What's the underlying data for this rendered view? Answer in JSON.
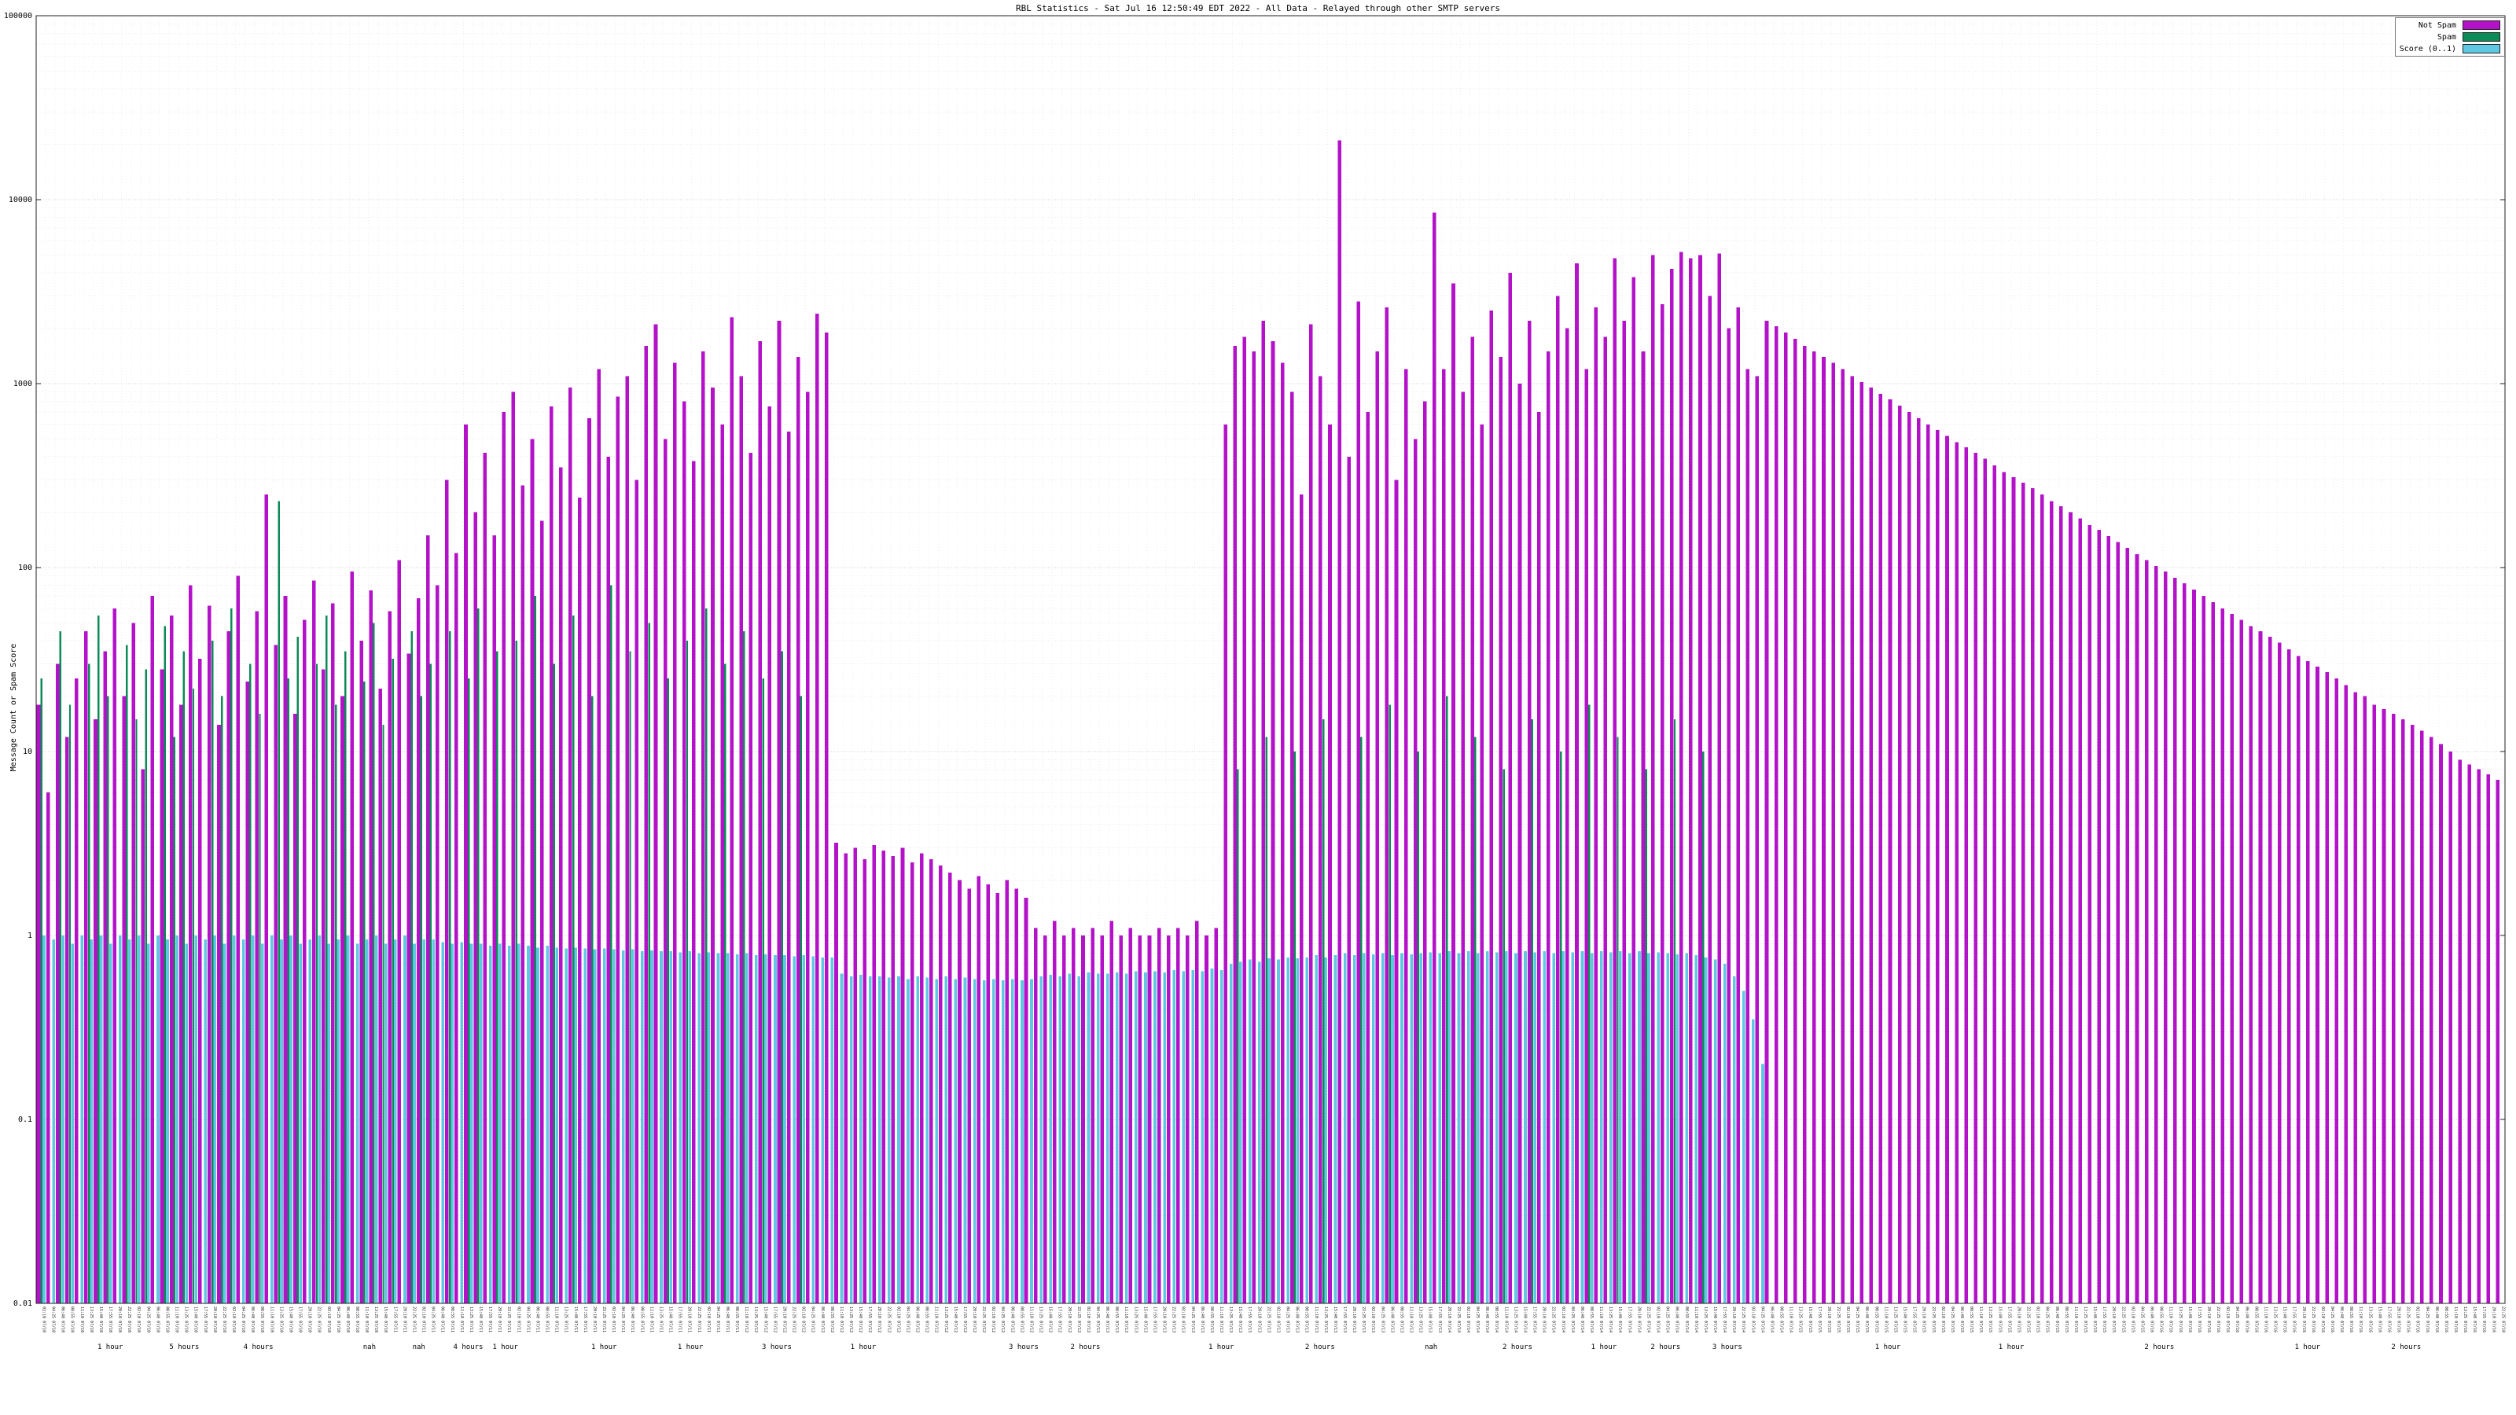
{
  "title": "RBL Statistics - Sat Jul 16 12:50:49 EDT 2022 - All Data - Relayed through other SMTP servers",
  "y_axis": {
    "label": "Message Count or Spam Score",
    "scale": "log",
    "ticks": [
      "100000",
      "10000",
      "1000",
      "100",
      "10",
      "1",
      "0.1",
      "0.01"
    ],
    "tick_values": [
      100000,
      10000,
      1000,
      100,
      10,
      1,
      0.1,
      0.01
    ]
  },
  "x_axis": {
    "tick_time_pattern": [
      "02:10",
      "04:25",
      "06:40",
      "08:55",
      "11:10",
      "13:25",
      "15:40",
      "17:55",
      "20:10",
      "22:25"
    ],
    "tick_date_pattern": [
      "07/10",
      "07/11",
      "07/12",
      "07/13",
      "07/14",
      "07/15",
      "07/16"
    ],
    "group_labels": [
      {
        "x": 0.03,
        "t": "1 hour"
      },
      {
        "x": 0.06,
        "t": "5 hours"
      },
      {
        "x": 0.09,
        "t": "4 hours"
      },
      {
        "x": 0.135,
        "t": "nah"
      },
      {
        "x": 0.155,
        "t": "nah"
      },
      {
        "x": 0.175,
        "t": "4 hours"
      },
      {
        "x": 0.19,
        "t": "1 hour"
      },
      {
        "x": 0.23,
        "t": "1 hour"
      },
      {
        "x": 0.265,
        "t": "1 hour"
      },
      {
        "x": 0.3,
        "t": "3 hours"
      },
      {
        "x": 0.335,
        "t": "1 hour"
      },
      {
        "x": 0.4,
        "t": "3 hours"
      },
      {
        "x": 0.425,
        "t": "2 hours"
      },
      {
        "x": 0.48,
        "t": "1 hour"
      },
      {
        "x": 0.52,
        "t": "2 hours"
      },
      {
        "x": 0.565,
        "t": "nah"
      },
      {
        "x": 0.6,
        "t": "2 hours"
      },
      {
        "x": 0.635,
        "t": "1 hour"
      },
      {
        "x": 0.66,
        "t": "2 hours"
      },
      {
        "x": 0.685,
        "t": "3 hours"
      },
      {
        "x": 0.75,
        "t": "1 hour"
      },
      {
        "x": 0.8,
        "t": "1 hour"
      },
      {
        "x": 0.86,
        "t": "2 hours"
      },
      {
        "x": 0.92,
        "t": "1 hour"
      },
      {
        "x": 0.96,
        "t": "2 hours"
      }
    ]
  },
  "legend": {
    "items": [
      {
        "label": "Not Spam",
        "color": "#b312c9"
      },
      {
        "label": "Spam",
        "color": "#0c8a57"
      },
      {
        "label": "Score (0..1)",
        "color": "#5ec8e2"
      }
    ]
  },
  "chart_data": {
    "type": "bar",
    "title": "RBL Statistics - Sat Jul 16 12:50:49 EDT 2022 - All Data - Relayed through other SMTP servers",
    "xlabel": "",
    "ylabel": "Message Count or Spam Score",
    "ylim": [
      0.01,
      100000
    ],
    "log_scale": true,
    "grid": true,
    "legend_position": "top-right",
    "series_names": [
      "Not Spam",
      "Spam",
      "Score (0..1)"
    ],
    "bars_format": "[not_spam_count, spam_count, score_0_to_1]",
    "bars": [
      [
        18,
        25,
        1
      ],
      [
        6,
        0,
        0.95
      ],
      [
        30,
        45,
        1
      ],
      [
        12,
        18,
        0.9
      ],
      [
        25,
        0,
        1
      ],
      [
        45,
        30,
        0.95
      ],
      [
        15,
        55,
        1
      ],
      [
        35,
        20,
        0.9
      ],
      [
        60,
        0,
        1
      ],
      [
        20,
        38,
        0.95
      ],
      [
        50,
        15,
        1
      ],
      [
        8,
        28,
        0.9
      ],
      [
        70,
        0,
        1
      ],
      [
        28,
        48,
        0.95
      ],
      [
        55,
        12,
        1
      ],
      [
        18,
        35,
        0.9
      ],
      [
        80,
        22,
        1
      ],
      [
        32,
        0,
        0.95
      ],
      [
        62,
        40,
        1
      ],
      [
        14,
        20,
        0.9
      ],
      [
        45,
        60,
        1
      ],
      [
        90,
        0,
        0.95
      ],
      [
        24,
        30,
        1
      ],
      [
        58,
        16,
        0.9
      ],
      [
        250,
        0,
        1
      ],
      [
        38,
        230,
        0.95
      ],
      [
        70,
        25,
        1
      ],
      [
        16,
        42,
        0.9
      ],
      [
        52,
        0,
        0.95
      ],
      [
        85,
        30,
        1
      ],
      [
        28,
        55,
        0.9
      ],
      [
        64,
        18,
        0.95
      ],
      [
        20,
        35,
        1
      ],
      [
        95,
        0,
        0.9
      ],
      [
        40,
        24,
        0.95
      ],
      [
        75,
        50,
        1
      ],
      [
        22,
        14,
        0.9
      ],
      [
        58,
        32,
        0.95
      ],
      [
        110,
        0,
        1
      ],
      [
        34,
        45,
        0.9
      ],
      [
        68,
        20,
        0.95
      ],
      [
        150,
        30,
        0.95
      ],
      [
        80,
        0,
        0.92
      ],
      [
        300,
        45,
        0.9
      ],
      [
        120,
        0,
        0.92
      ],
      [
        600,
        25,
        0.9
      ],
      [
        200,
        60,
        0.9
      ],
      [
        420,
        0,
        0.88
      ],
      [
        150,
        35,
        0.9
      ],
      [
        700,
        0,
        0.88
      ],
      [
        900,
        40,
        0.9
      ],
      [
        280,
        0,
        0.88
      ],
      [
        500,
        70,
        0.86
      ],
      [
        180,
        0,
        0.88
      ],
      [
        750,
        30,
        0.86
      ],
      [
        350,
        0,
        0.85
      ],
      [
        950,
        55,
        0.86
      ],
      [
        240,
        0,
        0.85
      ],
      [
        650,
        20,
        0.84
      ],
      [
        1200,
        0,
        0.85
      ],
      [
        400,
        80,
        0.84
      ],
      [
        850,
        0,
        0.83
      ],
      [
        1100,
        35,
        0.84
      ],
      [
        300,
        0,
        0.82
      ],
      [
        1600,
        50,
        0.83
      ],
      [
        2100,
        0,
        0.82
      ],
      [
        500,
        25,
        0.82
      ],
      [
        1300,
        0,
        0.81
      ],
      [
        800,
        40,
        0.82
      ],
      [
        380,
        0,
        0.8
      ],
      [
        1500,
        60,
        0.81
      ],
      [
        950,
        0,
        0.8
      ],
      [
        600,
        30,
        0.8
      ],
      [
        2300,
        0,
        0.79
      ],
      [
        1100,
        45,
        0.8
      ],
      [
        420,
        0,
        0.78
      ],
      [
        1700,
        25,
        0.79
      ],
      [
        750,
        0,
        0.78
      ],
      [
        2200,
        35,
        0.78
      ],
      [
        550,
        0,
        0.77
      ],
      [
        1400,
        20,
        0.78
      ],
      [
        900,
        0,
        0.77
      ],
      [
        2400,
        0,
        0.76
      ],
      [
        1900,
        0,
        0.76
      ],
      [
        3.2,
        0,
        0.62
      ],
      [
        2.8,
        0,
        0.6
      ],
      [
        3,
        0,
        0.61
      ],
      [
        2.6,
        0,
        0.6
      ],
      [
        3.1,
        0,
        0.6
      ],
      [
        2.9,
        0,
        0.59
      ],
      [
        2.7,
        0,
        0.6
      ],
      [
        3,
        0,
        0.58
      ],
      [
        2.5,
        0,
        0.6
      ],
      [
        2.8,
        0,
        0.59
      ],
      [
        2.6,
        0,
        0.58
      ],
      [
        2.4,
        0,
        0.6
      ],
      [
        2.2,
        0,
        0.58
      ],
      [
        2,
        0,
        0.59
      ],
      [
        1.8,
        0,
        0.58
      ],
      [
        2.1,
        0,
        0.57
      ],
      [
        1.9,
        0,
        0.58
      ],
      [
        1.7,
        0,
        0.57
      ],
      [
        2,
        0,
        0.58
      ],
      [
        1.8,
        0,
        0.57
      ],
      [
        1.6,
        0,
        0.58
      ],
      [
        1.1,
        0,
        0.6
      ],
      [
        1,
        0,
        0.61
      ],
      [
        1.2,
        0,
        0.6
      ],
      [
        1,
        0,
        0.62
      ],
      [
        1.1,
        0,
        0.6
      ],
      [
        1,
        0,
        0.63
      ],
      [
        1.1,
        0,
        0.62
      ],
      [
        1,
        0,
        0.62
      ],
      [
        1.2,
        0,
        0.63
      ],
      [
        1,
        0,
        0.62
      ],
      [
        1.1,
        0,
        0.64
      ],
      [
        1,
        0,
        0.63
      ],
      [
        1,
        0,
        0.64
      ],
      [
        1.1,
        0,
        0.63
      ],
      [
        1,
        0,
        0.65
      ],
      [
        1.1,
        0,
        0.64
      ],
      [
        1,
        0,
        0.65
      ],
      [
        1.2,
        0,
        0.64
      ],
      [
        1,
        0,
        0.66
      ],
      [
        1.1,
        0,
        0.65
      ],
      [
        600,
        0,
        0.7
      ],
      [
        1600,
        8,
        0.72
      ],
      [
        1800,
        0,
        0.74
      ],
      [
        1500,
        0,
        0.72
      ],
      [
        2200,
        12,
        0.75
      ],
      [
        1700,
        0,
        0.74
      ],
      [
        1300,
        0,
        0.76
      ],
      [
        900,
        10,
        0.75
      ],
      [
        250,
        0,
        0.76
      ],
      [
        2100,
        0,
        0.78
      ],
      [
        1100,
        15,
        0.76
      ],
      [
        600,
        0,
        0.78
      ],
      [
        21000,
        0,
        0.8
      ],
      [
        400,
        0,
        0.78
      ],
      [
        2800,
        12,
        0.8
      ],
      [
        700,
        0,
        0.79
      ],
      [
        1500,
        0,
        0.8
      ],
      [
        2600,
        18,
        0.78
      ],
      [
        300,
        0,
        0.8
      ],
      [
        1200,
        0,
        0.79
      ],
      [
        500,
        10,
        0.8
      ],
      [
        800,
        0,
        0.81
      ],
      [
        8500,
        0,
        0.8
      ],
      [
        1200,
        20,
        0.82
      ],
      [
        3500,
        0,
        0.8
      ],
      [
        900,
        0,
        0.82
      ],
      [
        1800,
        12,
        0.8
      ],
      [
        600,
        0,
        0.82
      ],
      [
        2500,
        0,
        0.81
      ],
      [
        1400,
        8,
        0.82
      ],
      [
        4000,
        0,
        0.8
      ],
      [
        1000,
        0,
        0.82
      ],
      [
        2200,
        15,
        0.81
      ],
      [
        700,
        0,
        0.82
      ],
      [
        1500,
        0,
        0.8
      ],
      [
        3000,
        10,
        0.82
      ],
      [
        2000,
        0,
        0.81
      ],
      [
        4500,
        0,
        0.82
      ],
      [
        1200,
        18,
        0.8
      ],
      [
        2600,
        0,
        0.82
      ],
      [
        1800,
        0,
        0.81
      ],
      [
        4800,
        12,
        0.82
      ],
      [
        2200,
        0,
        0.8
      ],
      [
        3800,
        0,
        0.82
      ],
      [
        1500,
        8,
        0.8
      ],
      [
        5000,
        0,
        0.81
      ],
      [
        2700,
        0,
        0.8
      ],
      [
        4200,
        15,
        0.79
      ],
      [
        5200,
        0,
        0.8
      ],
      [
        4800,
        0,
        0.78
      ],
      [
        5000,
        10,
        0.76
      ],
      [
        3000,
        0,
        0.74
      ],
      [
        5100,
        0,
        0.7
      ],
      [
        2000,
        0,
        0.6
      ],
      [
        2600,
        0,
        0.5
      ],
      [
        1200,
        0,
        0.35
      ],
      [
        1100,
        0,
        0.2
      ],
      [
        2200,
        0,
        0
      ],
      [
        2050,
        0,
        0
      ],
      [
        1900,
        0,
        0
      ],
      [
        1750,
        0,
        0
      ],
      [
        1600,
        0,
        0
      ],
      [
        1500,
        0,
        0
      ],
      [
        1400,
        0,
        0
      ],
      [
        1300,
        0,
        0
      ],
      [
        1200,
        0,
        0
      ],
      [
        1100,
        0,
        0
      ],
      [
        1020,
        0,
        0
      ],
      [
        950,
        0,
        0
      ],
      [
        880,
        0,
        0
      ],
      [
        820,
        0,
        0
      ],
      [
        760,
        0,
        0
      ],
      [
        700,
        0,
        0
      ],
      [
        650,
        0,
        0
      ],
      [
        600,
        0,
        0
      ],
      [
        560,
        0,
        0
      ],
      [
        520,
        0,
        0
      ],
      [
        480,
        0,
        0
      ],
      [
        450,
        0,
        0
      ],
      [
        420,
        0,
        0
      ],
      [
        390,
        0,
        0
      ],
      [
        360,
        0,
        0
      ],
      [
        330,
        0,
        0
      ],
      [
        310,
        0,
        0
      ],
      [
        290,
        0,
        0
      ],
      [
        270,
        0,
        0
      ],
      [
        250,
        0,
        0
      ],
      [
        230,
        0,
        0
      ],
      [
        215,
        0,
        0
      ],
      [
        200,
        0,
        0
      ],
      [
        185,
        0,
        0
      ],
      [
        170,
        0,
        0
      ],
      [
        160,
        0,
        0
      ],
      [
        148,
        0,
        0
      ],
      [
        138,
        0,
        0
      ],
      [
        128,
        0,
        0
      ],
      [
        118,
        0,
        0
      ],
      [
        110,
        0,
        0
      ],
      [
        102,
        0,
        0
      ],
      [
        95,
        0,
        0
      ],
      [
        88,
        0,
        0
      ],
      [
        82,
        0,
        0
      ],
      [
        76,
        0,
        0
      ],
      [
        70,
        0,
        0
      ],
      [
        65,
        0,
        0
      ],
      [
        60,
        0,
        0
      ],
      [
        56,
        0,
        0
      ],
      [
        52,
        0,
        0
      ],
      [
        48,
        0,
        0
      ],
      [
        45,
        0,
        0
      ],
      [
        42,
        0,
        0
      ],
      [
        39,
        0,
        0
      ],
      [
        36,
        0,
        0
      ],
      [
        33,
        0,
        0
      ],
      [
        31,
        0,
        0
      ],
      [
        29,
        0,
        0
      ],
      [
        27,
        0,
        0
      ],
      [
        25,
        0,
        0
      ],
      [
        23,
        0,
        0
      ],
      [
        21,
        0,
        0
      ],
      [
        20,
        0,
        0
      ],
      [
        18,
        0,
        0
      ],
      [
        17,
        0,
        0
      ],
      [
        16,
        0,
        0
      ],
      [
        15,
        0,
        0
      ],
      [
        14,
        0,
        0
      ],
      [
        13,
        0,
        0
      ],
      [
        12,
        0,
        0
      ],
      [
        11,
        0,
        0
      ],
      [
        10,
        0,
        0
      ],
      [
        9,
        0,
        0
      ],
      [
        8.5,
        0,
        0
      ],
      [
        8,
        0,
        0
      ],
      [
        7.5,
        0,
        0
      ],
      [
        7,
        0,
        0
      ]
    ]
  }
}
